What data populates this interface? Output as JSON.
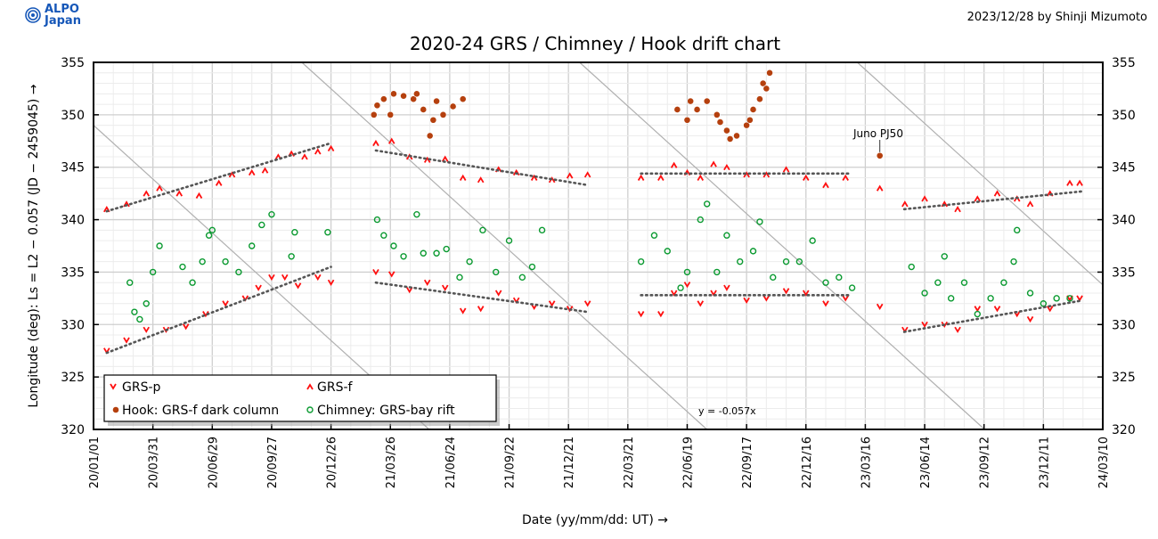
{
  "header": {
    "logo_line1": "ALPO",
    "logo_line2": "Japan",
    "credit": "2023/12/28   by Shinji Mizumoto"
  },
  "chart_data": {
    "type": "scatter",
    "title": "2020-24 GRS / Chimney / Hook drift chart",
    "xlabel": "Date (yy/mm/dd: UT) →",
    "ylabel": "Longitude (deg): Ls = L2 − 0.057 (JD − 2459045) →",
    "xlim": [
      "2020-01-01",
      "2024-03-10"
    ],
    "ylim": [
      320,
      355
    ],
    "grid": true,
    "legend_placement": "bottom-left",
    "x_ticks": [
      "20/01/01",
      "20/03/31",
      "20/06/29",
      "20/09/27",
      "20/12/26",
      "21/03/26",
      "21/06/24",
      "21/09/22",
      "21/12/21",
      "22/03/21",
      "22/06/19",
      "22/09/17",
      "22/12/16",
      "23/03/16",
      "23/06/14",
      "23/09/12",
      "23/12/11",
      "24/03/10"
    ],
    "y_ticks": [
      320,
      325,
      330,
      335,
      340,
      345,
      350,
      355
    ],
    "drift_line_label": "y = -0.057x",
    "drift_slope_deg_per_day": -0.057,
    "drift_line_values_at_2020-01-01": [
      349,
      373,
      397,
      421
    ],
    "annotation": {
      "text": "Juno PJ50",
      "date": "2023-04-07",
      "lon": 346.1
    },
    "colors": {
      "grs": "#ff1010",
      "hook": "#b5400e",
      "chimney": "#0a9a30",
      "trend": "#555555",
      "drift": "#b0b0b0"
    },
    "series": [
      {
        "name": "GRS-p",
        "marker": "v",
        "color": "#ff1010",
        "points": [
          [
            "2020-01-21",
            327.5
          ],
          [
            "2020-02-20",
            328.5
          ],
          [
            "2020-03-21",
            329.5
          ],
          [
            "2020-04-20",
            329.5
          ],
          [
            "2020-05-20",
            329.8
          ],
          [
            "2020-06-19",
            331
          ],
          [
            "2020-07-19",
            332
          ],
          [
            "2020-08-18",
            332.5
          ],
          [
            "2020-09-07",
            333.5
          ],
          [
            "2020-09-27",
            334.5
          ],
          [
            "2020-10-17",
            334.5
          ],
          [
            "2020-11-06",
            333.7
          ],
          [
            "2020-12-06",
            334.5
          ],
          [
            "2020-12-26",
            334
          ],
          [
            "2021-03-04",
            335
          ],
          [
            "2021-03-28",
            334.8
          ],
          [
            "2021-04-24",
            333.3
          ],
          [
            "2021-05-21",
            334
          ],
          [
            "2021-06-17",
            333.5
          ],
          [
            "2021-07-14",
            331.3
          ],
          [
            "2021-08-10",
            331.5
          ],
          [
            "2021-09-06",
            333
          ],
          [
            "2021-10-03",
            332.3
          ],
          [
            "2021-10-30",
            331.7
          ],
          [
            "2021-11-26",
            332
          ],
          [
            "2021-12-23",
            331.5
          ],
          [
            "2022-01-19",
            332
          ],
          [
            "2022-04-10",
            331
          ],
          [
            "2022-05-10",
            331
          ],
          [
            "2022-05-30",
            333
          ],
          [
            "2022-06-19",
            333.8
          ],
          [
            "2022-07-09",
            332
          ],
          [
            "2022-07-29",
            333
          ],
          [
            "2022-08-18",
            333.5
          ],
          [
            "2022-09-17",
            332.3
          ],
          [
            "2022-10-17",
            332.5
          ],
          [
            "2022-11-16",
            333.2
          ],
          [
            "2022-12-16",
            333
          ],
          [
            "2023-01-15",
            332
          ],
          [
            "2023-02-14",
            332.5
          ],
          [
            "2023-04-07",
            331.7
          ],
          [
            "2023-05-15",
            329.5
          ],
          [
            "2023-06-14",
            330
          ],
          [
            "2023-07-14",
            330
          ],
          [
            "2023-08-03",
            329.5
          ],
          [
            "2023-09-02",
            331.5
          ],
          [
            "2023-10-02",
            331.5
          ],
          [
            "2023-11-01",
            331
          ],
          [
            "2023-11-21",
            330.5
          ],
          [
            "2023-12-21",
            331.5
          ],
          [
            "2024-01-20",
            332.5
          ],
          [
            "2024-02-04",
            332.5
          ]
        ]
      },
      {
        "name": "GRS-f",
        "marker": "^",
        "color": "#ff1010",
        "points": [
          [
            "2020-01-21",
            341
          ],
          [
            "2020-02-20",
            341.5
          ],
          [
            "2020-03-21",
            342.5
          ],
          [
            "2020-04-10",
            343
          ],
          [
            "2020-05-10",
            342.5
          ],
          [
            "2020-06-09",
            342.3
          ],
          [
            "2020-07-09",
            343.5
          ],
          [
            "2020-07-29",
            344.3
          ],
          [
            "2020-08-28",
            344.5
          ],
          [
            "2020-09-17",
            344.7
          ],
          [
            "2020-10-07",
            346
          ],
          [
            "2020-10-27",
            346.3
          ],
          [
            "2020-11-16",
            346
          ],
          [
            "2020-12-06",
            346.5
          ],
          [
            "2020-12-26",
            346.8
          ],
          [
            "2021-03-04",
            347.3
          ],
          [
            "2021-03-28",
            347.5
          ],
          [
            "2021-04-24",
            346
          ],
          [
            "2021-05-21",
            345.7
          ],
          [
            "2021-06-17",
            345.8
          ],
          [
            "2021-07-14",
            344
          ],
          [
            "2021-08-10",
            343.8
          ],
          [
            "2021-09-06",
            344.8
          ],
          [
            "2021-10-03",
            344.5
          ],
          [
            "2021-10-30",
            344
          ],
          [
            "2021-11-26",
            343.8
          ],
          [
            "2021-12-23",
            344.2
          ],
          [
            "2022-01-19",
            344.3
          ],
          [
            "2022-04-10",
            344
          ],
          [
            "2022-05-10",
            344
          ],
          [
            "2022-05-30",
            345.2
          ],
          [
            "2022-06-19",
            344.5
          ],
          [
            "2022-07-09",
            344
          ],
          [
            "2022-07-29",
            345.3
          ],
          [
            "2022-08-18",
            345
          ],
          [
            "2022-09-17",
            344.3
          ],
          [
            "2022-10-17",
            344.3
          ],
          [
            "2022-11-16",
            344.8
          ],
          [
            "2022-12-16",
            344
          ],
          [
            "2023-01-15",
            343.3
          ],
          [
            "2023-02-14",
            344
          ],
          [
            "2023-04-07",
            343
          ],
          [
            "2023-05-15",
            341.5
          ],
          [
            "2023-06-14",
            342
          ],
          [
            "2023-07-14",
            341.5
          ],
          [
            "2023-08-03",
            341
          ],
          [
            "2023-09-02",
            342
          ],
          [
            "2023-10-02",
            342.5
          ],
          [
            "2023-11-01",
            342
          ],
          [
            "2023-11-21",
            341.5
          ],
          [
            "2023-12-21",
            342.5
          ],
          [
            "2024-01-20",
            343.5
          ],
          [
            "2024-02-04",
            343.5
          ]
        ]
      },
      {
        "name": "Hook: GRS-f dark column",
        "marker": "dot",
        "color": "#b5400e",
        "points": [
          [
            "2021-03-01",
            350
          ],
          [
            "2021-03-06",
            350.9
          ],
          [
            "2021-03-16",
            351.5
          ],
          [
            "2021-03-26",
            350
          ],
          [
            "2021-03-31",
            352
          ],
          [
            "2021-04-15",
            351.8
          ],
          [
            "2021-04-30",
            351.5
          ],
          [
            "2021-05-05",
            352
          ],
          [
            "2021-05-15",
            350.5
          ],
          [
            "2021-05-25",
            348
          ],
          [
            "2021-05-30",
            349.5
          ],
          [
            "2021-06-04",
            351.3
          ],
          [
            "2021-06-14",
            350
          ],
          [
            "2021-06-29",
            350.8
          ],
          [
            "2021-07-14",
            351.5
          ],
          [
            "2022-06-04",
            350.5
          ],
          [
            "2022-06-19",
            349.5
          ],
          [
            "2022-06-24",
            351.3
          ],
          [
            "2022-07-04",
            350.5
          ],
          [
            "2022-07-19",
            351.3
          ],
          [
            "2022-08-03",
            350
          ],
          [
            "2022-08-08",
            349.3
          ],
          [
            "2022-08-18",
            348.5
          ],
          [
            "2022-08-23",
            347.7
          ],
          [
            "2022-09-02",
            348
          ],
          [
            "2022-09-17",
            349
          ],
          [
            "2022-09-22",
            349.5
          ],
          [
            "2022-09-27",
            350.5
          ],
          [
            "2022-10-07",
            351.5
          ],
          [
            "2022-10-12",
            353
          ],
          [
            "2022-10-17",
            352.5
          ],
          [
            "2022-10-22",
            354
          ],
          [
            "2023-04-07",
            346.1
          ]
        ]
      },
      {
        "name": "Chimney: GRS-bay rift",
        "marker": "circle",
        "color": "#0a9a30",
        "points": [
          [
            "2020-02-25",
            334
          ],
          [
            "2020-03-03",
            331.2
          ],
          [
            "2020-03-11",
            330.5
          ],
          [
            "2020-03-21",
            332
          ],
          [
            "2020-03-31",
            335
          ],
          [
            "2020-04-10",
            337.5
          ],
          [
            "2020-05-15",
            335.5
          ],
          [
            "2020-05-30",
            334
          ],
          [
            "2020-06-14",
            336
          ],
          [
            "2020-06-24",
            338.5
          ],
          [
            "2020-06-29",
            339
          ],
          [
            "2020-07-19",
            336
          ],
          [
            "2020-08-08",
            335
          ],
          [
            "2020-08-28",
            337.5
          ],
          [
            "2020-09-12",
            339.5
          ],
          [
            "2020-09-27",
            340.5
          ],
          [
            "2020-10-27",
            336.5
          ],
          [
            "2020-11-01",
            338.8
          ],
          [
            "2020-12-21",
            338.8
          ],
          [
            "2021-03-06",
            340
          ],
          [
            "2021-03-16",
            338.5
          ],
          [
            "2021-03-31",
            337.5
          ],
          [
            "2021-04-15",
            336.5
          ],
          [
            "2021-05-05",
            340.5
          ],
          [
            "2021-05-15",
            336.8
          ],
          [
            "2021-06-04",
            336.8
          ],
          [
            "2021-06-19",
            337.2
          ],
          [
            "2021-07-09",
            334.5
          ],
          [
            "2021-07-24",
            336
          ],
          [
            "2021-08-13",
            339
          ],
          [
            "2021-09-02",
            335
          ],
          [
            "2021-09-22",
            338
          ],
          [
            "2021-10-12",
            334.5
          ],
          [
            "2021-10-27",
            335.5
          ],
          [
            "2021-11-11",
            339
          ],
          [
            "2022-04-10",
            336
          ],
          [
            "2022-04-30",
            338.5
          ],
          [
            "2022-05-20",
            337
          ],
          [
            "2022-06-09",
            333.5
          ],
          [
            "2022-06-19",
            335
          ],
          [
            "2022-07-09",
            340
          ],
          [
            "2022-07-19",
            341.5
          ],
          [
            "2022-08-03",
            335
          ],
          [
            "2022-08-18",
            338.5
          ],
          [
            "2022-09-07",
            336
          ],
          [
            "2022-09-27",
            337
          ],
          [
            "2022-10-07",
            339.8
          ],
          [
            "2022-10-27",
            334.5
          ],
          [
            "2022-11-16",
            336
          ],
          [
            "2022-12-06",
            336
          ],
          [
            "2022-12-26",
            338
          ],
          [
            "2023-01-15",
            334
          ],
          [
            "2023-02-04",
            334.5
          ],
          [
            "2023-02-24",
            333.5
          ],
          [
            "2023-05-25",
            335.5
          ],
          [
            "2023-06-14",
            333
          ],
          [
            "2023-07-04",
            334
          ],
          [
            "2023-07-14",
            336.5
          ],
          [
            "2023-07-24",
            332.5
          ],
          [
            "2023-08-13",
            334
          ],
          [
            "2023-09-02",
            331
          ],
          [
            "2023-09-22",
            332.5
          ],
          [
            "2023-10-12",
            334
          ],
          [
            "2023-10-27",
            336
          ],
          [
            "2023-11-01",
            339
          ],
          [
            "2023-11-21",
            333
          ],
          [
            "2023-12-11",
            332
          ],
          [
            "2023-12-31",
            332.5
          ],
          [
            "2024-01-20",
            332.5
          ]
        ]
      }
    ],
    "trend_lines": [
      {
        "series": "GRS-f",
        "from": [
          "2020-01-21",
          340.8
        ],
        "to": [
          "2020-12-26",
          347.3
        ]
      },
      {
        "series": "GRS-p",
        "from": [
          "2020-01-21",
          327.3
        ],
        "to": [
          "2020-12-26",
          335.5
        ]
      },
      {
        "series": "GRS-f",
        "from": [
          "2021-03-04",
          346.6
        ],
        "to": [
          "2022-01-19",
          343.3
        ]
      },
      {
        "series": "GRS-p",
        "from": [
          "2021-03-04",
          334
        ],
        "to": [
          "2022-01-19",
          331.2
        ]
      },
      {
        "series": "GRS-f",
        "from": [
          "2022-04-10",
          344.4
        ],
        "to": [
          "2023-02-22",
          344.4
        ]
      },
      {
        "series": "GRS-p",
        "from": [
          "2022-04-10",
          332.8
        ],
        "to": [
          "2023-02-22",
          332.8
        ]
      },
      {
        "series": "GRS-f",
        "from": [
          "2023-05-14",
          341
        ],
        "to": [
          "2024-02-08",
          342.7
        ]
      },
      {
        "series": "GRS-p",
        "from": [
          "2023-05-14",
          329.3
        ],
        "to": [
          "2024-02-08",
          332.3
        ]
      }
    ]
  }
}
